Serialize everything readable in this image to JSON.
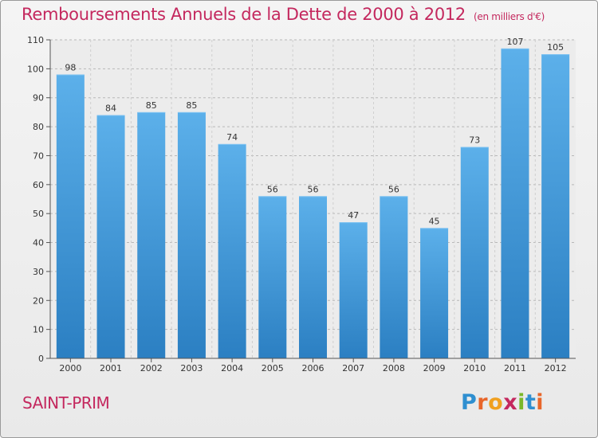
{
  "header": {
    "title": "Remboursements Annuels de la Dette de 2000 à 2012",
    "subtitle": "(en milliers d'€)"
  },
  "footer": {
    "commune": "SAINT-PRIM",
    "logo": [
      "P",
      "r",
      "o",
      "x",
      "i",
      "t",
      "i"
    ]
  },
  "chart_data": {
    "type": "bar",
    "title": "Remboursements Annuels de la Dette de 2000 à 2012",
    "subtitle": "(en milliers d'€)",
    "categories": [
      "2000",
      "2001",
      "2002",
      "2003",
      "2004",
      "2005",
      "2006",
      "2007",
      "2008",
      "2009",
      "2010",
      "2011",
      "2012"
    ],
    "values": [
      98,
      84,
      85,
      85,
      74,
      56,
      56,
      47,
      56,
      45,
      73,
      107,
      105
    ],
    "ylim": [
      0,
      110
    ],
    "yticks": [
      0,
      10,
      20,
      30,
      40,
      50,
      60,
      70,
      80,
      90,
      100,
      110
    ],
    "grid": "horizontal dashed",
    "bar_color": "#3d93d4",
    "bar_color_light": "#5cb0ea",
    "data_labels": true
  }
}
